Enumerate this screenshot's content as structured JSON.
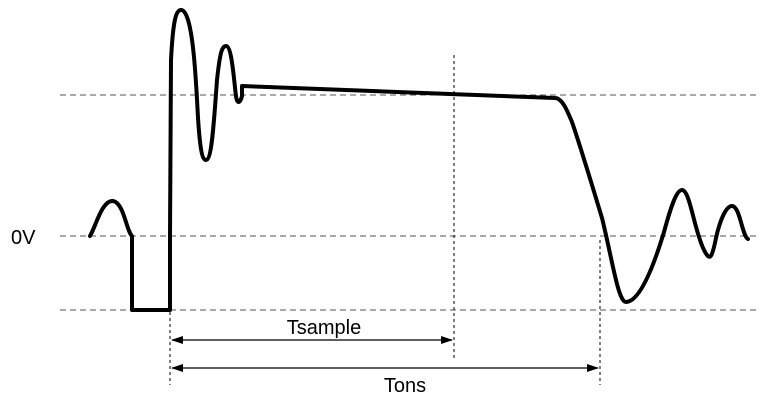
{
  "labels": {
    "zero_volt": "0V",
    "tsample": "Tsample",
    "tons": "Tons"
  },
  "colors": {
    "waveform": "#000000",
    "guides": "#555555",
    "background": "#ffffff"
  }
}
